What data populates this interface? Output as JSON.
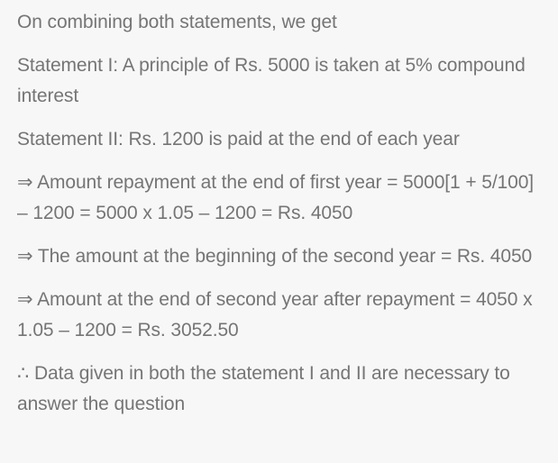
{
  "solution": {
    "paragraphs": [
      "On combining both statements, we get",
      "Statement I: A principle of Rs. 5000 is taken at 5% compound interest",
      "Statement II: Rs. 1200 is paid at the end of each year",
      "⇒ Amount repayment at the end of first year = 5000[1 + 5/100] – 1200 = 5000 x 1.05 – 1200 = Rs. 4050",
      "⇒ The amount at the beginning of the second year = Rs. 4050",
      "⇒ Amount at the end of second year after repayment = 4050 x 1.05 – 1200 = Rs. 3052.50",
      "∴ Data given in both the statement I and II are necessary to answer the question"
    ]
  }
}
